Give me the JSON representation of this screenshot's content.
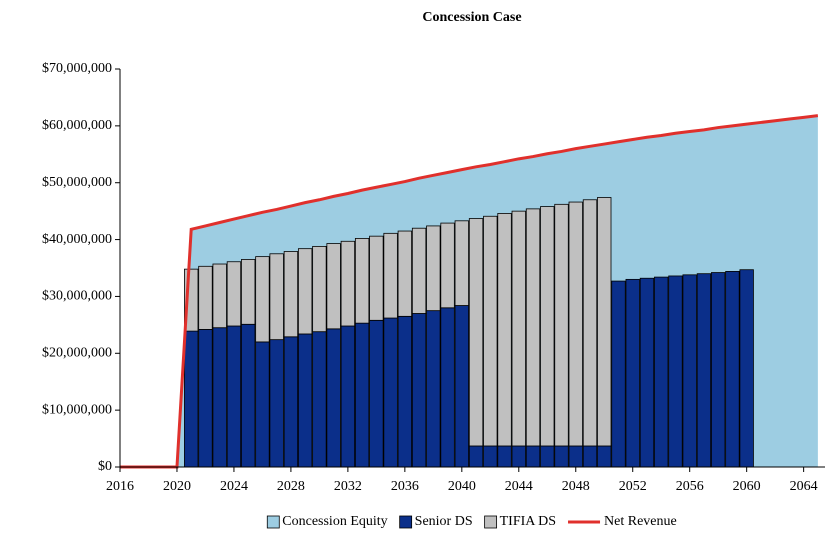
{
  "chart_data": {
    "type": "combo",
    "title": "Concession Case",
    "x": [
      2016,
      2017,
      2018,
      2019,
      2020,
      2021,
      2022,
      2023,
      2024,
      2025,
      2026,
      2027,
      2028,
      2029,
      2030,
      2031,
      2032,
      2033,
      2034,
      2035,
      2036,
      2037,
      2038,
      2039,
      2040,
      2041,
      2042,
      2043,
      2044,
      2045,
      2046,
      2047,
      2048,
      2049,
      2050,
      2051,
      2052,
      2053,
      2054,
      2055,
      2056,
      2057,
      2058,
      2059,
      2060,
      2061,
      2062,
      2063,
      2064,
      2065
    ],
    "xlim": [
      2016,
      2065.5
    ],
    "xticks": [
      2016,
      2020,
      2024,
      2028,
      2032,
      2036,
      2040,
      2044,
      2048,
      2052,
      2056,
      2060,
      2064
    ],
    "ylim": [
      0,
      70000000
    ],
    "yticks": [
      {
        "value": 0,
        "label": "$0"
      },
      {
        "value": 10000000,
        "label": "$10,000,000"
      },
      {
        "value": 20000000,
        "label": "$20,000,000"
      },
      {
        "value": 30000000,
        "label": "$30,000,000"
      },
      {
        "value": 40000000,
        "label": "$40,000,000"
      },
      {
        "value": 50000000,
        "label": "$50,000,000"
      },
      {
        "value": 60000000,
        "label": "$60,000,000"
      },
      {
        "value": 70000000,
        "label": "$70,000,000"
      }
    ],
    "grid": false,
    "legend": "bottom",
    "series": [
      {
        "name": "Concession Equity",
        "type": "area",
        "color": "#9dcde2",
        "values": [
          0,
          0,
          0,
          0,
          0,
          41800000,
          42400000,
          43000000,
          43600000,
          44200000,
          44800000,
          45300000,
          45900000,
          46500000,
          47000000,
          47600000,
          48100000,
          48700000,
          49200000,
          49700000,
          50200000,
          50800000,
          51300000,
          51800000,
          52300000,
          52800000,
          53200000,
          53700000,
          54200000,
          54600000,
          55100000,
          55500000,
          56000000,
          56400000,
          56800000,
          57200000,
          57600000,
          58000000,
          58300000,
          58700000,
          59000000,
          59300000,
          59700000,
          60000000,
          60300000,
          60600000,
          60900000,
          61200000,
          61500000,
          61800000
        ]
      },
      {
        "name": "Senior DS",
        "type": "bar",
        "color": "#0b2f8a",
        "values": [
          null,
          null,
          null,
          null,
          null,
          23900000,
          24200000,
          24500000,
          24800000,
          25100000,
          22000000,
          22400000,
          22900000,
          23400000,
          23800000,
          24300000,
          24800000,
          25300000,
          25800000,
          26200000,
          26500000,
          27000000,
          27500000,
          28000000,
          28400000,
          3700000,
          3700000,
          3700000,
          3700000,
          3700000,
          3700000,
          3700000,
          3700000,
          3700000,
          3700000,
          32700000,
          33000000,
          33200000,
          33400000,
          33600000,
          33800000,
          34000000,
          34200000,
          34400000,
          34700000,
          null,
          null,
          null,
          null,
          null
        ]
      },
      {
        "name": "TIFIA DS",
        "type": "bar",
        "color": "#c0c0c0",
        "values": [
          null,
          null,
          null,
          null,
          null,
          10900000,
          11100000,
          11200000,
          11300000,
          11400000,
          15000000,
          15100000,
          15000000,
          15000000,
          15000000,
          15000000,
          14900000,
          14900000,
          14800000,
          14900000,
          15000000,
          15000000,
          14900000,
          14900000,
          14900000,
          40000000,
          40400000,
          40900000,
          41300000,
          41700000,
          42100000,
          42500000,
          42900000,
          43300000,
          43700000,
          null,
          null,
          null,
          null,
          null,
          null,
          null,
          null,
          null,
          null,
          null,
          null,
          null,
          null,
          null
        ]
      },
      {
        "name": "Net Revenue",
        "type": "line",
        "color": "#e0302c",
        "values": [
          0,
          0,
          0,
          0,
          0,
          41800000,
          42400000,
          43000000,
          43600000,
          44200000,
          44800000,
          45300000,
          45900000,
          46500000,
          47000000,
          47600000,
          48100000,
          48700000,
          49200000,
          49700000,
          50200000,
          50800000,
          51300000,
          51800000,
          52300000,
          52800000,
          53200000,
          53700000,
          54200000,
          54600000,
          55100000,
          55500000,
          56000000,
          56400000,
          56800000,
          57200000,
          57600000,
          58000000,
          58300000,
          58700000,
          59000000,
          59300000,
          59700000,
          60000000,
          60300000,
          60600000,
          60900000,
          61200000,
          61500000,
          61800000
        ]
      }
    ]
  }
}
